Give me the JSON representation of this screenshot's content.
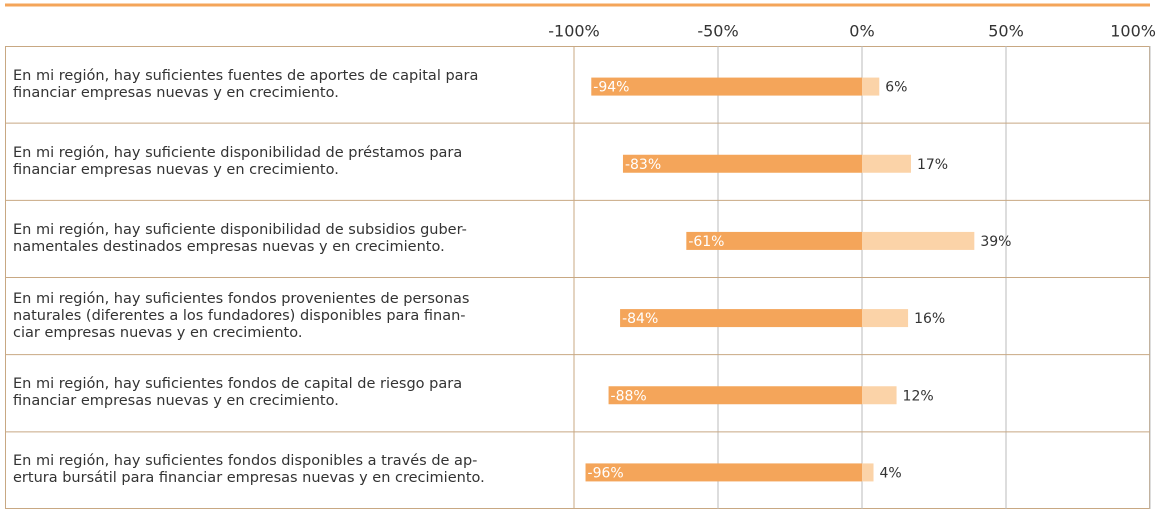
{
  "chart_data": {
    "type": "diverging-bar",
    "categories": [
      "En mi región, hay suficientes fuentes de aportes de capital para\nfinanciar empresas nuevas y en crecimiento.",
      "En mi región, hay suficiente disponibilidad de préstamos para\nfinanciar empresas nuevas y en crecimiento.",
      "En mi región, hay suficiente disponibilidad de subsidios guber-\nnamentales destinados empresas nuevas y en crecimiento.",
      "En mi región, hay suficientes fondos provenientes de personas\nnaturales (diferentes a los fundadores) disponibles para finan-\nciar empresas nuevas y en crecimiento.",
      "En mi región, hay suficientes fondos de capital de riesgo para\nfinanciar empresas nuevas y en crecimiento.",
      "En mi región, hay suficientes fondos disponibles a través de ap-\nertura bursátil para financiar empresas nuevas y en crecimiento."
    ],
    "series": [
      {
        "color": "#f4a55a",
        "values": [
          -94,
          -83,
          -61,
          -84,
          -88,
          -96
        ],
        "value_labels": [
          "-94%",
          "-83%",
          "-61%",
          "-84%",
          "-88%",
          "-96%"
        ]
      },
      {
        "color": "#fbd3a8",
        "values": [
          6,
          17,
          39,
          16,
          12,
          4
        ],
        "value_labels": [
          "6%",
          "17%",
          "39%",
          "16%",
          "12%",
          "4%"
        ]
      }
    ],
    "xlim": [
      -100,
      100
    ],
    "xticks": [
      {
        "value": -100,
        "label": "-100%"
      },
      {
        "value": -50,
        "label": "-50%"
      },
      {
        "value": 0,
        "label": "0%"
      },
      {
        "value": 50,
        "label": "50%"
      },
      {
        "value": 100,
        "label": "100%"
      }
    ],
    "grid": true
  }
}
